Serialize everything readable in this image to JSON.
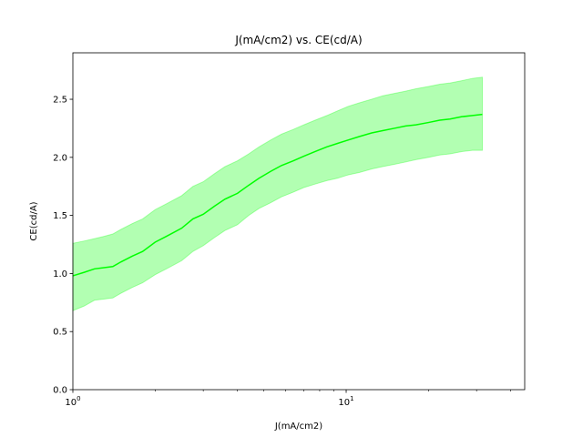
{
  "chart_data": {
    "type": "line",
    "title": "J(mA/cm2) vs. CE(cd/A)",
    "xlabel": "J(mA/cm2)",
    "ylabel": "CE(cd/A)",
    "xscale": "log",
    "xlim": [
      1,
      45
    ],
    "ylim": [
      0,
      2.9
    ],
    "grid": false,
    "legend": "none",
    "x_ticks": [
      {
        "value": 1,
        "base": "10",
        "exp": "0"
      },
      {
        "value": 10,
        "base": "10",
        "exp": "1"
      }
    ],
    "y_ticks": [
      0.0,
      0.5,
      1.0,
      1.5,
      2.0,
      2.5
    ],
    "y_tick_labels": [
      "0.0",
      "0.5",
      "1.0",
      "1.5",
      "2.0",
      "2.5"
    ],
    "colors": {
      "line": "#00ff00",
      "band": "#00ff00"
    },
    "series": [
      {
        "x": [
          1.0,
          1.1,
          1.2,
          1.3,
          1.4,
          1.5,
          1.65,
          1.8,
          2.0,
          2.2,
          2.5,
          2.75,
          3.0,
          3.3,
          3.6,
          4.0,
          4.4,
          4.8,
          5.3,
          5.8,
          6.4,
          7.0,
          7.7,
          8.5,
          9.3,
          10.2,
          11.2,
          12.4,
          13.6,
          15.0,
          16.5,
          18.0,
          20.0,
          22.0,
          24.0,
          26.5,
          29.0,
          31.5
        ],
        "y": [
          0.98,
          1.01,
          1.04,
          1.05,
          1.06,
          1.1,
          1.15,
          1.19,
          1.27,
          1.32,
          1.39,
          1.47,
          1.51,
          1.58,
          1.64,
          1.69,
          1.76,
          1.82,
          1.88,
          1.93,
          1.97,
          2.01,
          2.05,
          2.09,
          2.12,
          2.15,
          2.18,
          2.21,
          2.23,
          2.25,
          2.27,
          2.28,
          2.3,
          2.32,
          2.33,
          2.35,
          2.36,
          2.37
        ],
        "lower": [
          0.68,
          0.72,
          0.77,
          0.78,
          0.79,
          0.83,
          0.88,
          0.92,
          0.99,
          1.04,
          1.11,
          1.19,
          1.24,
          1.31,
          1.37,
          1.42,
          1.5,
          1.56,
          1.61,
          1.66,
          1.7,
          1.74,
          1.77,
          1.8,
          1.82,
          1.85,
          1.87,
          1.9,
          1.92,
          1.94,
          1.96,
          1.98,
          2.0,
          2.02,
          2.03,
          2.05,
          2.06,
          2.06
        ],
        "upper": [
          1.26,
          1.28,
          1.3,
          1.32,
          1.34,
          1.38,
          1.43,
          1.47,
          1.55,
          1.6,
          1.67,
          1.75,
          1.79,
          1.86,
          1.92,
          1.97,
          2.03,
          2.09,
          2.15,
          2.2,
          2.24,
          2.28,
          2.32,
          2.36,
          2.4,
          2.44,
          2.47,
          2.5,
          2.53,
          2.55,
          2.57,
          2.59,
          2.61,
          2.63,
          2.64,
          2.66,
          2.68,
          2.69
        ]
      }
    ]
  }
}
